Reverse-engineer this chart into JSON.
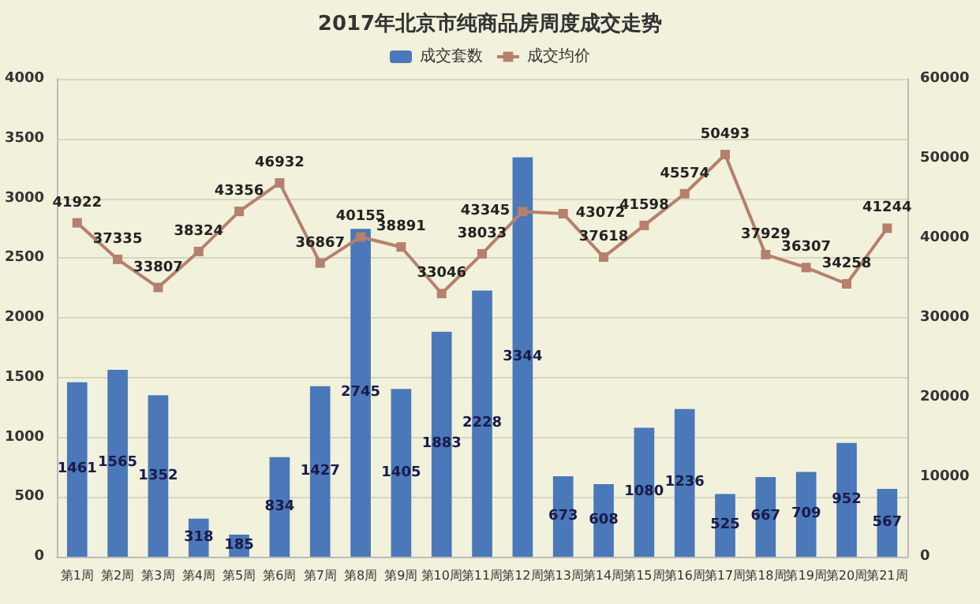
{
  "chart_data": {
    "type": "bar",
    "title": "2017年北京市纯商品房周度成交走势",
    "categories": [
      "第1周",
      "第2周",
      "第3周",
      "第4周",
      "第5周",
      "第6周",
      "第7周",
      "第8周",
      "第9周",
      "第10周",
      "第11周",
      "第12周",
      "第13周",
      "第14周",
      "第15周",
      "第16周",
      "第17周",
      "第18周",
      "第19周",
      "第20周",
      "第21周"
    ],
    "series": [
      {
        "name": "成交套数",
        "type": "bar",
        "color": "#4a78b8",
        "values": [
          1461,
          1565,
          1352,
          318,
          185,
          834,
          1427,
          2745,
          1405,
          1883,
          2228,
          3344,
          673,
          608,
          1080,
          1236,
          525,
          667,
          709,
          952,
          567
        ]
      },
      {
        "name": "成交均价",
        "type": "line",
        "axis": "y2",
        "color": "#b5806c",
        "marker": "square",
        "values": [
          41922,
          37335,
          33807,
          38324,
          43356,
          46932,
          36867,
          40155,
          38891,
          33046,
          38033,
          43345,
          43072,
          37618,
          41598,
          45574,
          50493,
          37929,
          36307,
          34258,
          41244
        ]
      }
    ],
    "ylim": [
      0,
      4000
    ],
    "yticks": [
      0,
      500,
      1000,
      1500,
      2000,
      2500,
      3000,
      3500,
      4000
    ],
    "y2lim": [
      0,
      60000
    ],
    "y2ticks": [
      0,
      10000,
      20000,
      30000,
      40000,
      50000,
      60000
    ],
    "grid": "y",
    "legend": "top",
    "data_labels": true
  }
}
